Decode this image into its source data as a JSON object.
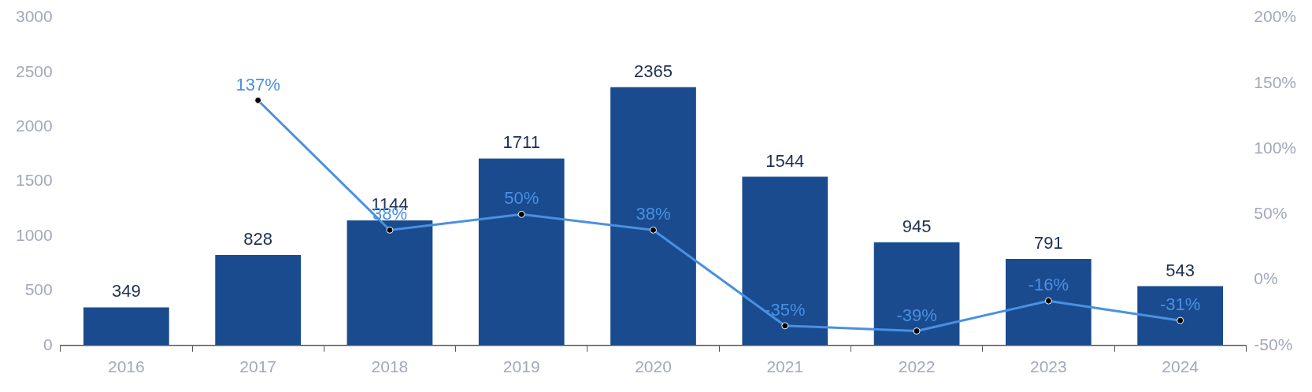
{
  "chart_data": {
    "type": "bar",
    "categories": [
      "2016",
      "2017",
      "2018",
      "2019",
      "2020",
      "2021",
      "2022",
      "2023",
      "2024"
    ],
    "series": [
      {
        "color": "#1a4b8e",
        "values": [
          349,
          828,
          1144,
          1711,
          2365,
          1544,
          945,
          791,
          543
        ],
        "value_labels": [
          "349",
          "828",
          "1144",
          "1711",
          "2365",
          "1544",
          "945",
          "791",
          "543"
        ]
      },
      {
        "type": "line",
        "axis": "y2",
        "color": "#4a90e2",
        "values": [
          null,
          137,
          38,
          50,
          38,
          -35,
          -39,
          -16,
          -31
        ],
        "value_labels": [
          null,
          "137%",
          "38%",
          "50%",
          "38%",
          "-35%",
          "-39%",
          "-16%",
          "-31%"
        ]
      }
    ],
    "ylim": [
      0,
      3000
    ],
    "yticks": [
      0,
      500,
      1000,
      1500,
      2000,
      2500,
      3000
    ],
    "y2lim": [
      -50,
      200
    ],
    "y2ticks": [
      {
        "value": -50,
        "label": "-50%"
      },
      {
        "value": 0,
        "label": "0%"
      },
      {
        "value": 50,
        "label": "50%"
      },
      {
        "value": 100,
        "label": "100%"
      },
      {
        "value": 150,
        "label": "150%"
      },
      {
        "value": 200,
        "label": "200%"
      }
    ],
    "grid": false,
    "legend": false,
    "marker": "circle",
    "line_style": "solid"
  }
}
